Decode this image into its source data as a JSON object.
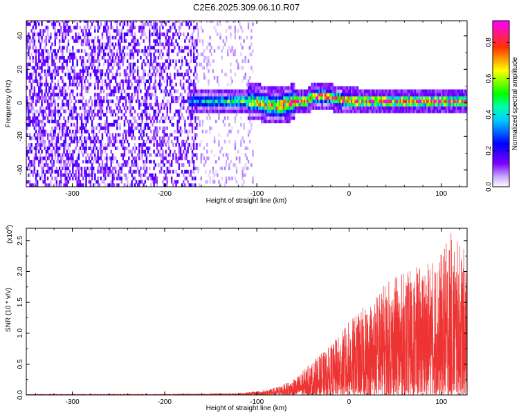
{
  "title": "C2E6.2025.309.06.10.R07",
  "chart_data": [
    {
      "type": "heatmap",
      "name": "spectrogram",
      "xlabel": "Height of straight line (km)",
      "ylabel": "Frequency (Hz)",
      "xlim": [
        -350,
        128
      ],
      "ylim": [
        -50,
        49
      ],
      "xticks": [
        -300,
        -200,
        -100,
        0,
        100
      ],
      "xtick_labels": [
        "-300",
        "-200",
        "-100",
        "0",
        "100"
      ],
      "yticks": [
        -40,
        -20,
        0,
        20,
        40
      ],
      "ytick_labels": [
        "-40",
        "-20",
        "0",
        "20",
        "40"
      ],
      "colorbar": {
        "label": "Normalized spectral amplitude",
        "range": [
          0,
          0.92
        ],
        "ticks": [
          0.0,
          0.2,
          0.4,
          0.6,
          0.8
        ],
        "tick_labels": [
          "0.0",
          "0.2",
          "0.4",
          "0.6",
          "0.8"
        ],
        "colormap": [
          "#ffffff",
          "#7a00ff",
          "#0000ff",
          "#00ffff",
          "#00ff00",
          "#ffff00",
          "#ff0000",
          "#ff00ff"
        ]
      },
      "regions": [
        {
          "desc": "broadband noise",
          "x": [
            -350,
            -165
          ],
          "freq": [
            -50,
            49
          ],
          "amplitude": 0.12
        },
        {
          "desc": "sparse noise",
          "x": [
            -165,
            -105
          ],
          "freq": [
            -50,
            49
          ],
          "amplitude": 0.05
        },
        {
          "desc": "narrow signal band",
          "x": [
            -175,
            128
          ],
          "center_freq_hz": 1,
          "width_hz": 10,
          "peak_amplitude": 0.9
        }
      ]
    },
    {
      "type": "line",
      "name": "snr",
      "xlabel": "Height of straight line (km)",
      "ylabel": "SNR (10 * v/v)",
      "y_multiplier": "(x10^4)",
      "y_multiplier_base": "(x10",
      "y_multiplier_exp": "4",
      "y_multiplier_close": ")",
      "xlim": [
        -350,
        128
      ],
      "ylim": [
        0,
        2.7
      ],
      "xticks": [
        -300,
        -200,
        -100,
        0,
        100
      ],
      "xtick_labels": [
        "-300",
        "-200",
        "-100",
        "0",
        "100"
      ],
      "yticks": [
        0.0,
        0.5,
        1.0,
        1.5,
        2.0,
        2.5
      ],
      "ytick_labels": [
        "0.0",
        "0.5",
        "1.0",
        "1.5",
        "2.0",
        "2.5"
      ],
      "color": "#ee3333",
      "envelope_points": [
        {
          "x": -350,
          "y": 0.01
        },
        {
          "x": -200,
          "y": 0.01
        },
        {
          "x": -120,
          "y": 0.03
        },
        {
          "x": -100,
          "y": 0.06
        },
        {
          "x": -80,
          "y": 0.12
        },
        {
          "x": -60,
          "y": 0.25
        },
        {
          "x": -40,
          "y": 0.55
        },
        {
          "x": -20,
          "y": 0.8
        },
        {
          "x": 0,
          "y": 1.2
        },
        {
          "x": 20,
          "y": 1.5
        },
        {
          "x": 40,
          "y": 1.85
        },
        {
          "x": 60,
          "y": 2.0
        },
        {
          "x": 80,
          "y": 2.1
        },
        {
          "x": 100,
          "y": 2.3
        },
        {
          "x": 110,
          "y": 2.65
        },
        {
          "x": 128,
          "y": 2.3
        }
      ]
    }
  ]
}
